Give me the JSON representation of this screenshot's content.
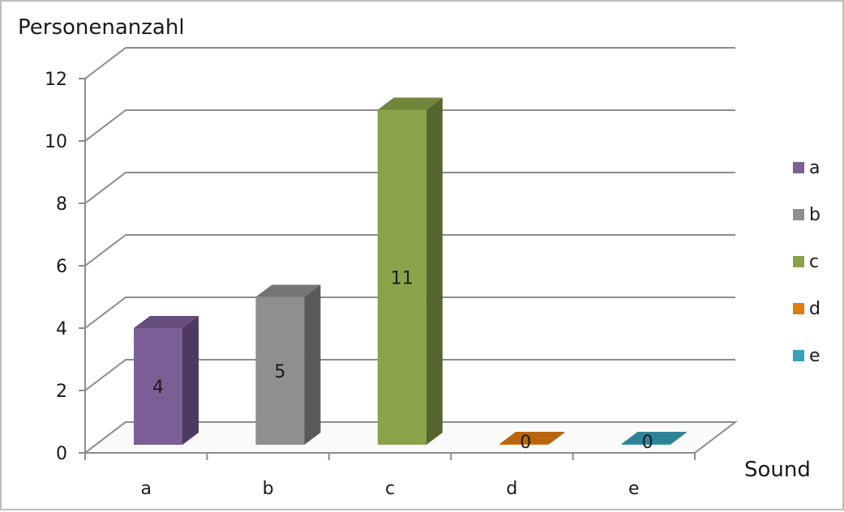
{
  "chart_data": {
    "type": "bar",
    "three_d": true,
    "ylabel": "Personenanzahl",
    "xlabel": "Sound",
    "categories": [
      "a",
      "b",
      "c",
      "d",
      "e"
    ],
    "values": [
      4,
      5,
      11,
      0,
      0
    ],
    "data_labels": [
      "4",
      "5",
      "11",
      "0",
      "0"
    ],
    "ylim": [
      0,
      12
    ],
    "yticks": [
      0,
      2,
      4,
      6,
      8,
      10,
      12
    ],
    "grid": true,
    "legend": {
      "placement": "right",
      "entries": [
        "a",
        "b",
        "c",
        "d",
        "e"
      ]
    },
    "colors": {
      "a": "#7b5f97",
      "b": "#8f8f8f",
      "c": "#8aa34a",
      "d": "#e07b10",
      "e": "#3aa0b8"
    }
  }
}
